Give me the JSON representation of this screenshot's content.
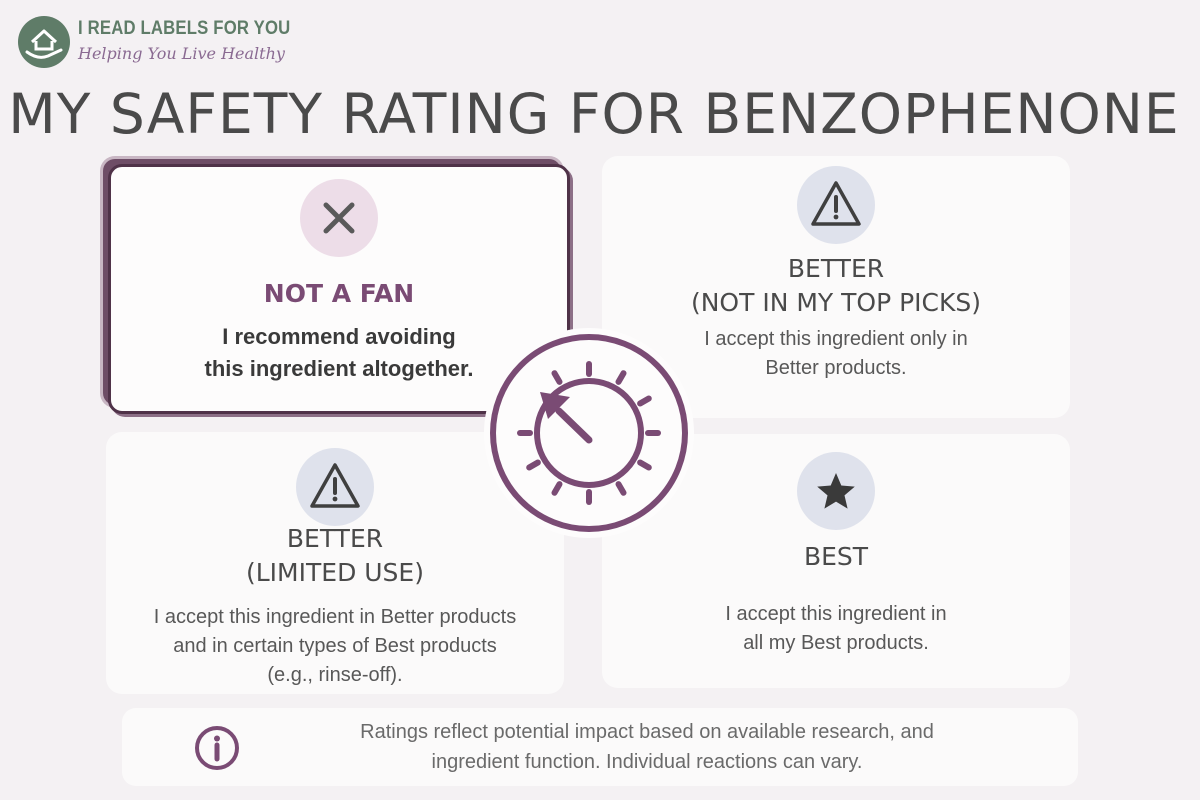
{
  "brand": {
    "name": "I READ LABELS FOR YOU",
    "tagline": "Helping You Live Healthy"
  },
  "title": "MY SAFETY RATING FOR BENZOPHENONE",
  "cards": {
    "not_a_fan": {
      "icon": "x-icon",
      "heading": "NOT A FAN",
      "desc_lines": [
        "I recommend avoiding",
        "this ingredient altogether."
      ],
      "selected": true
    },
    "better_not_top": {
      "icon": "warning-icon",
      "heading_lines": [
        "BETTER",
        "(NOT IN MY TOP PICKS)"
      ],
      "desc_lines": [
        "I accept this ingredient only in",
        "Better products."
      ]
    },
    "better_limited": {
      "icon": "warning-icon",
      "heading_lines": [
        "BETTER",
        "(LIMITED USE)"
      ],
      "desc_lines": [
        "I accept this ingredient in Better products",
        "and in certain types of Best products",
        "(e.g., rinse-off)."
      ]
    },
    "best": {
      "icon": "star-icon",
      "heading": "BEST",
      "desc_lines": [
        "I accept this ingredient in",
        "all my Best products."
      ]
    }
  },
  "dial": {
    "icon": "dial-gauge-icon",
    "pointer": "not_a_fan"
  },
  "footer": {
    "icon": "info-icon",
    "note_lines": [
      "Ratings reflect potential impact based on available research, and",
      "ingredient function. Individual reactions can vary."
    ]
  },
  "colors": {
    "accent_purple": "#7a4b74",
    "brand_green": "#5f7c68",
    "icon_bg_pink": "#eddde8",
    "icon_bg_blue": "#dfe2ec",
    "background": "#f4f1f3"
  }
}
